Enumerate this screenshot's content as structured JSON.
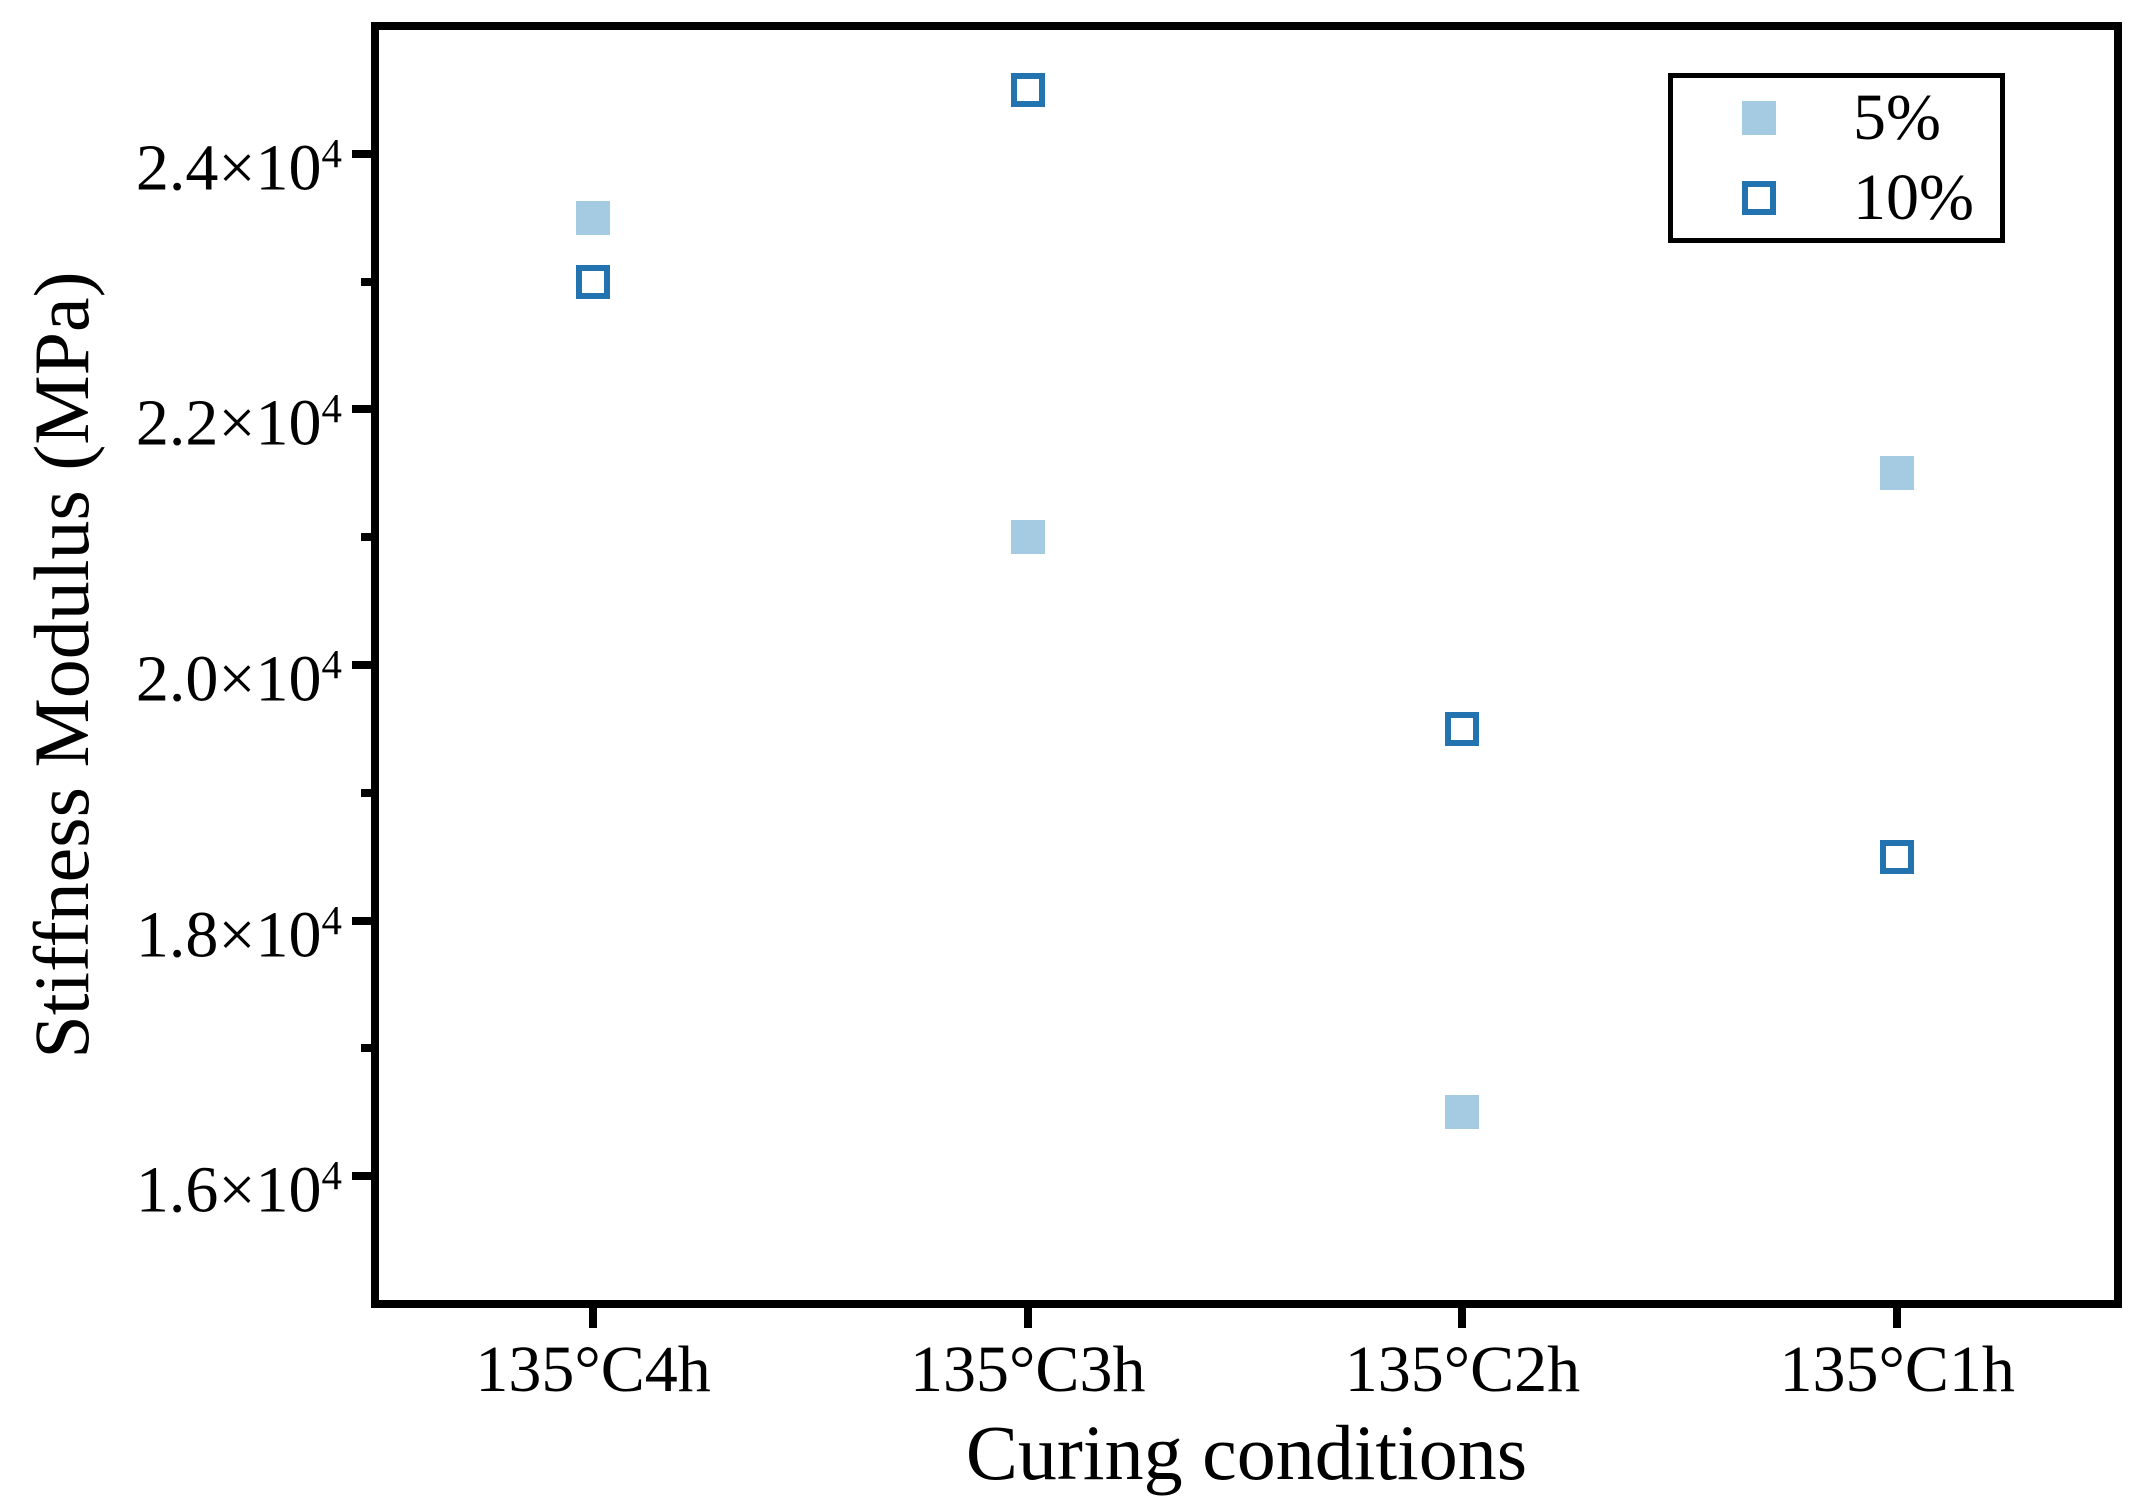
{
  "colors": {
    "marker_fill": "#a4cbe2",
    "marker_edge": "#2273b0",
    "axis": "#000000",
    "background": "#ffffff"
  },
  "chart_data": {
    "type": "scatter",
    "title": "",
    "xlabel": "Curing conditions",
    "ylabel": "Stiffness Modulus (MPa)",
    "categories": [
      "135°C4h",
      "135°C3h",
      "135°C2h",
      "135°C1h"
    ],
    "series": [
      {
        "name": "5%",
        "marker": "filled-square",
        "values": [
          23500,
          21000,
          16500,
          21500
        ]
      },
      {
        "name": "10%",
        "marker": "open-square",
        "values": [
          23000,
          24500,
          19500,
          18500
        ]
      }
    ],
    "ylim": [
      15000,
      25000
    ],
    "ytick_values": [
      24000,
      22000,
      20000,
      18000,
      16000
    ],
    "ytick_labels": [
      "2.4×10⁴",
      "2.2×10⁴",
      "2.0×10⁴",
      "1.8×10⁴",
      "1.6×10⁴"
    ],
    "yminor_values": [
      23000,
      21000,
      19000,
      17000
    ],
    "grid": false,
    "legend_position": "top-right"
  }
}
